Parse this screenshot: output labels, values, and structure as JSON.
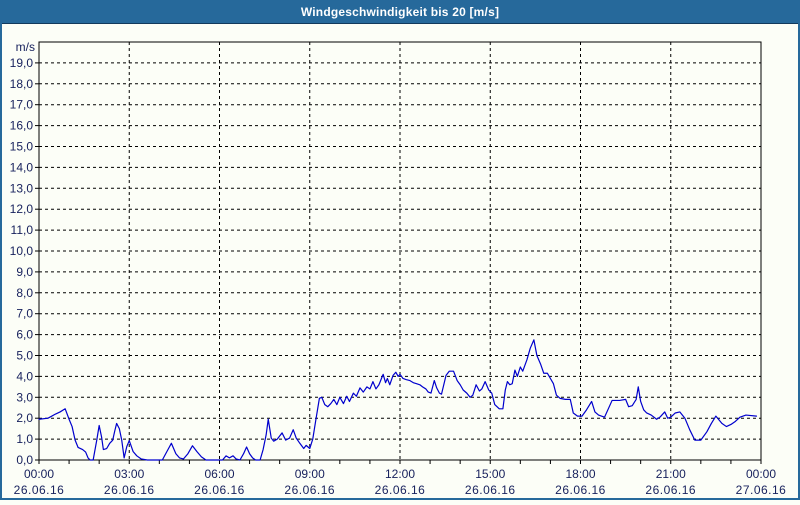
{
  "window": {
    "title": "Windgeschwindigkeit bis 20 [m/s]"
  },
  "colors": {
    "frame": "#26699B",
    "titlebar_bg": "#26699B",
    "titlebar_text": "#FFFFFF",
    "page_bg": "#FCFEF7",
    "plot_border": "#000000",
    "grid": "#000000",
    "line": "#0000CD",
    "axis_text": "#16205C"
  },
  "chart_data": {
    "type": "line",
    "title": "Windgeschwindigkeit bis 20 [m/s]",
    "ylabel": "m/s",
    "xlabel": "",
    "ylim": [
      0,
      20
    ],
    "ytick_labels": [
      "0,0",
      "1,0",
      "2,0",
      "3,0",
      "4,0",
      "5,0",
      "6,0",
      "7,0",
      "8,0",
      "9,0",
      "10,0",
      "11,0",
      "12,0",
      "13,0",
      "14,0",
      "15,0",
      "16,0",
      "17,0",
      "18,0",
      "19,0"
    ],
    "x_hours_total": 24,
    "minor_xtick_every_hours": 1,
    "gridline_hours": [
      3,
      6,
      9,
      12,
      15,
      18,
      21
    ],
    "grid_style": "dashed",
    "legend": "none",
    "xticks": [
      {
        "hour": 0,
        "time": "00:00",
        "date": "26.06.16"
      },
      {
        "hour": 3,
        "time": "03:00",
        "date": "26.06.16"
      },
      {
        "hour": 6,
        "time": "06:00",
        "date": "26.06.16"
      },
      {
        "hour": 9,
        "time": "09:00",
        "date": "26.06.16"
      },
      {
        "hour": 12,
        "time": "12:00",
        "date": "26.06.16"
      },
      {
        "hour": 15,
        "time": "15:00",
        "date": "26.06.16"
      },
      {
        "hour": 18,
        "time": "18:00",
        "date": "26.06.16"
      },
      {
        "hour": 21,
        "time": "21:00",
        "date": "26.06.16"
      },
      {
        "hour": 24,
        "time": "00:00",
        "date": "27.06.16"
      }
    ],
    "series_name": "Windgeschwindigkeit",
    "unit": "m/s",
    "points": [
      [
        0.0,
        1.95
      ],
      [
        0.3,
        2.0
      ],
      [
        0.55,
        2.2
      ],
      [
        0.7,
        2.3
      ],
      [
        0.87,
        2.45
      ],
      [
        1.0,
        1.95
      ],
      [
        1.1,
        1.6
      ],
      [
        1.2,
        0.95
      ],
      [
        1.3,
        0.6
      ],
      [
        1.45,
        0.5
      ],
      [
        1.55,
        0.38
      ],
      [
        1.63,
        0.1
      ],
      [
        1.7,
        0.0
      ],
      [
        1.8,
        0.0
      ],
      [
        1.92,
        0.95
      ],
      [
        2.0,
        1.65
      ],
      [
        2.08,
        1.1
      ],
      [
        2.14,
        0.5
      ],
      [
        2.25,
        0.55
      ],
      [
        2.35,
        0.8
      ],
      [
        2.45,
        0.95
      ],
      [
        2.52,
        1.4
      ],
      [
        2.58,
        1.75
      ],
      [
        2.67,
        1.5
      ],
      [
        2.75,
        0.95
      ],
      [
        2.83,
        0.1
      ],
      [
        2.92,
        0.65
      ],
      [
        3.0,
        0.93
      ],
      [
        3.13,
        0.4
      ],
      [
        3.25,
        0.2
      ],
      [
        3.4,
        0.05
      ],
      [
        3.6,
        0.0
      ],
      [
        4.1,
        0.0
      ],
      [
        4.25,
        0.4
      ],
      [
        4.4,
        0.8
      ],
      [
        4.55,
        0.3
      ],
      [
        4.67,
        0.1
      ],
      [
        4.8,
        0.05
      ],
      [
        4.95,
        0.3
      ],
      [
        5.1,
        0.68
      ],
      [
        5.25,
        0.4
      ],
      [
        5.4,
        0.15
      ],
      [
        5.55,
        0.0
      ],
      [
        6.1,
        0.0
      ],
      [
        6.22,
        0.2
      ],
      [
        6.33,
        0.1
      ],
      [
        6.45,
        0.2
      ],
      [
        6.55,
        0.05
      ],
      [
        6.68,
        0.0
      ],
      [
        6.8,
        0.3
      ],
      [
        6.9,
        0.62
      ],
      [
        7.0,
        0.3
      ],
      [
        7.1,
        0.1
      ],
      [
        7.2,
        0.0
      ],
      [
        7.35,
        0.0
      ],
      [
        7.45,
        0.5
      ],
      [
        7.55,
        1.2
      ],
      [
        7.62,
        1.95
      ],
      [
        7.72,
        1.05
      ],
      [
        7.8,
        0.9
      ],
      [
        7.92,
        1.0
      ],
      [
        8.0,
        1.15
      ],
      [
        8.08,
        1.3
      ],
      [
        8.2,
        0.95
      ],
      [
        8.33,
        1.05
      ],
      [
        8.45,
        1.45
      ],
      [
        8.55,
        1.05
      ],
      [
        8.67,
        0.8
      ],
      [
        8.8,
        0.55
      ],
      [
        8.88,
        0.7
      ],
      [
        9.0,
        0.55
      ],
      [
        9.1,
        1.0
      ],
      [
        9.2,
        1.9
      ],
      [
        9.32,
        2.95
      ],
      [
        9.4,
        3.0
      ],
      [
        9.5,
        2.65
      ],
      [
        9.6,
        2.55
      ],
      [
        9.7,
        2.7
      ],
      [
        9.8,
        2.9
      ],
      [
        9.9,
        2.65
      ],
      [
        10.0,
        3.0
      ],
      [
        10.12,
        2.7
      ],
      [
        10.23,
        3.05
      ],
      [
        10.32,
        2.8
      ],
      [
        10.45,
        3.2
      ],
      [
        10.55,
        3.05
      ],
      [
        10.67,
        3.45
      ],
      [
        10.78,
        3.25
      ],
      [
        10.9,
        3.5
      ],
      [
        11.0,
        3.4
      ],
      [
        11.1,
        3.75
      ],
      [
        11.2,
        3.4
      ],
      [
        11.3,
        3.6
      ],
      [
        11.44,
        4.1
      ],
      [
        11.52,
        3.7
      ],
      [
        11.58,
        3.9
      ],
      [
        11.66,
        3.6
      ],
      [
        11.77,
        4.05
      ],
      [
        11.86,
        4.2
      ],
      [
        11.94,
        4.0
      ],
      [
        12.0,
        4.1
      ],
      [
        12.1,
        3.9
      ],
      [
        12.2,
        3.85
      ],
      [
        12.33,
        3.8
      ],
      [
        12.44,
        3.7
      ],
      [
        12.55,
        3.65
      ],
      [
        12.66,
        3.6
      ],
      [
        12.75,
        3.5
      ],
      [
        12.86,
        3.4
      ],
      [
        12.94,
        3.25
      ],
      [
        13.03,
        3.2
      ],
      [
        13.14,
        3.8
      ],
      [
        13.22,
        3.45
      ],
      [
        13.31,
        3.2
      ],
      [
        13.38,
        3.15
      ],
      [
        13.53,
        4.05
      ],
      [
        13.64,
        4.25
      ],
      [
        13.78,
        4.25
      ],
      [
        13.9,
        3.8
      ],
      [
        14.0,
        3.6
      ],
      [
        14.1,
        3.35
      ],
      [
        14.22,
        3.2
      ],
      [
        14.33,
        3.0
      ],
      [
        14.42,
        3.1
      ],
      [
        14.53,
        3.6
      ],
      [
        14.64,
        3.3
      ],
      [
        14.72,
        3.4
      ],
      [
        14.83,
        3.75
      ],
      [
        14.95,
        3.35
      ],
      [
        15.05,
        3.2
      ],
      [
        15.15,
        2.65
      ],
      [
        15.3,
        2.45
      ],
      [
        15.42,
        2.45
      ],
      [
        15.5,
        3.35
      ],
      [
        15.57,
        3.75
      ],
      [
        15.65,
        3.6
      ],
      [
        15.73,
        3.65
      ],
      [
        15.82,
        4.3
      ],
      [
        15.9,
        4.0
      ],
      [
        16.0,
        4.45
      ],
      [
        16.08,
        4.25
      ],
      [
        16.22,
        4.8
      ],
      [
        16.33,
        5.35
      ],
      [
        16.45,
        5.75
      ],
      [
        16.55,
        5.0
      ],
      [
        16.67,
        4.6
      ],
      [
        16.78,
        4.15
      ],
      [
        16.9,
        4.15
      ],
      [
        17.0,
        3.9
      ],
      [
        17.1,
        3.65
      ],
      [
        17.2,
        3.1
      ],
      [
        17.32,
        2.95
      ],
      [
        17.5,
        2.9
      ],
      [
        17.66,
        2.9
      ],
      [
        17.76,
        2.25
      ],
      [
        17.9,
        2.1
      ],
      [
        18.05,
        2.1
      ],
      [
        18.2,
        2.4
      ],
      [
        18.37,
        2.8
      ],
      [
        18.48,
        2.3
      ],
      [
        18.6,
        2.15
      ],
      [
        18.8,
        2.05
      ],
      [
        19.05,
        2.85
      ],
      [
        19.3,
        2.85
      ],
      [
        19.5,
        2.9
      ],
      [
        19.6,
        2.55
      ],
      [
        19.72,
        2.6
      ],
      [
        19.85,
        2.9
      ],
      [
        19.92,
        3.5
      ],
      [
        20.0,
        2.8
      ],
      [
        20.1,
        2.4
      ],
      [
        20.2,
        2.25
      ],
      [
        20.35,
        2.15
      ],
      [
        20.53,
        1.95
      ],
      [
        20.64,
        2.05
      ],
      [
        20.8,
        2.3
      ],
      [
        20.9,
        2.0
      ],
      [
        21.0,
        2.05
      ],
      [
        21.15,
        2.25
      ],
      [
        21.3,
        2.3
      ],
      [
        21.47,
        2.0
      ],
      [
        21.63,
        1.45
      ],
      [
        21.8,
        0.95
      ],
      [
        22.0,
        0.95
      ],
      [
        22.2,
        1.35
      ],
      [
        22.35,
        1.75
      ],
      [
        22.5,
        2.1
      ],
      [
        22.7,
        1.75
      ],
      [
        22.85,
        1.6
      ],
      [
        23.0,
        1.7
      ],
      [
        23.15,
        1.85
      ],
      [
        23.3,
        2.05
      ],
      [
        23.5,
        2.15
      ],
      [
        23.85,
        2.1
      ]
    ]
  }
}
